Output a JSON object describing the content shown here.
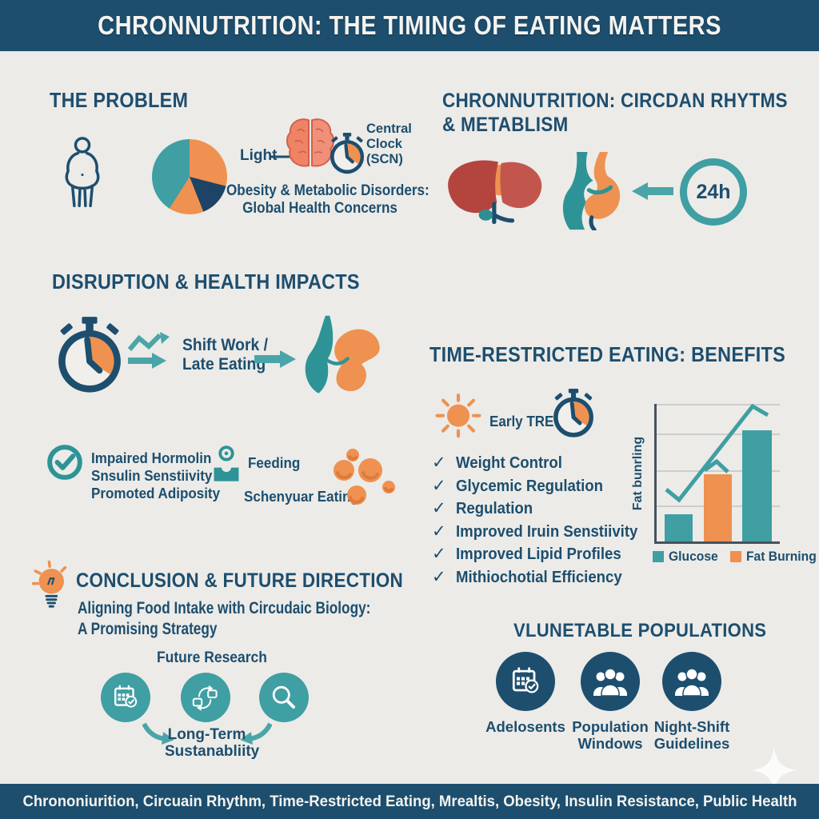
{
  "header": {
    "title": "CHRONNUTRITION: THE TIMING OF EATING MATTERS"
  },
  "problem": {
    "heading": "THE PROBLEM",
    "light_label": "Light",
    "clock_label": "Central Clock (SCN)",
    "caption_lines": [
      "Obesity & Metabolic Disorders:",
      "Global Health Concerns"
    ]
  },
  "circadian": {
    "heading_line1": "CHRONNUTRITION: CIRCDAN RHYTMS",
    "heading_line2": "& METABLISM",
    "badge": "24h"
  },
  "disruption": {
    "heading": "DISRUPTION & HEALTH IMPACTS",
    "cause_lines": [
      "Shift Work /",
      "Late Eating"
    ],
    "effects": [
      "Impaired Hormolin",
      "Snsulin Senstiivity",
      "Promoted Adiposity"
    ],
    "feeding_label": "Feeding",
    "eating_label": "Schenyuar Eating"
  },
  "tre": {
    "heading": "TIME-RESTRICTED EATING: BENEFITS",
    "early_label": "Early TRE",
    "check": "✓",
    "benefits": [
      "Weight Control",
      "Glycemic Regulation",
      "Regulation",
      "Improved Iruin Senstiivity",
      "Improved Lipid Profiles",
      "Mithiochotial Efficiency"
    ]
  },
  "chart_data": [
    {
      "type": "bar",
      "ylabel": "Fat bunrling",
      "bars": [
        {
          "color": "#3f9fa3",
          "value": 20
        },
        {
          "color": "#ef9150",
          "value": 49
        },
        {
          "color": "#3f9fa3",
          "value": 81
        }
      ],
      "legend": [
        {
          "label": "Glucose",
          "color": "#3f9fa3"
        },
        {
          "label": "Fat Burning",
          "color": "#ef9150"
        }
      ],
      "line_overlay": "rising zigzag trend line",
      "ylim": [
        0,
        100
      ],
      "grid": true,
      "legend_position": "bottom"
    },
    {
      "type": "pie",
      "slices": [
        {
          "color": "#ef9150",
          "value": 29
        },
        {
          "color": "#1d4466",
          "value": 15
        },
        {
          "color": "#ef9150",
          "value": 15
        },
        {
          "color": "#3f9fa3",
          "value": 41
        }
      ]
    }
  ],
  "conclusion": {
    "heading": "CONCLUSION & FUTURE DIRECTION",
    "subtitle_lines": [
      "Aligning Food Intake with Circudaic Biology:",
      "A Promising Strategy"
    ],
    "future_label": "Future Research",
    "longterm": "Long-Term Sustanabliity"
  },
  "populations": {
    "heading": "VLUNETABLE POPULATIONS",
    "items": [
      "Adelosents",
      "Population Windows",
      "Night-Shift Guidelines"
    ]
  },
  "footer": {
    "keywords": "Chrononiurition, Circuain Rhythm, Time-Restricted Eating, Mrealtis, Obesity, Insulin Resistance, Public Health"
  },
  "colors": {
    "navy": "#1d4e6e",
    "teal": "#3f9fa3",
    "orange": "#ef9150",
    "dark_navy": "#1d4466",
    "liver_red": "#b4453e",
    "background": "#ecebe8"
  }
}
